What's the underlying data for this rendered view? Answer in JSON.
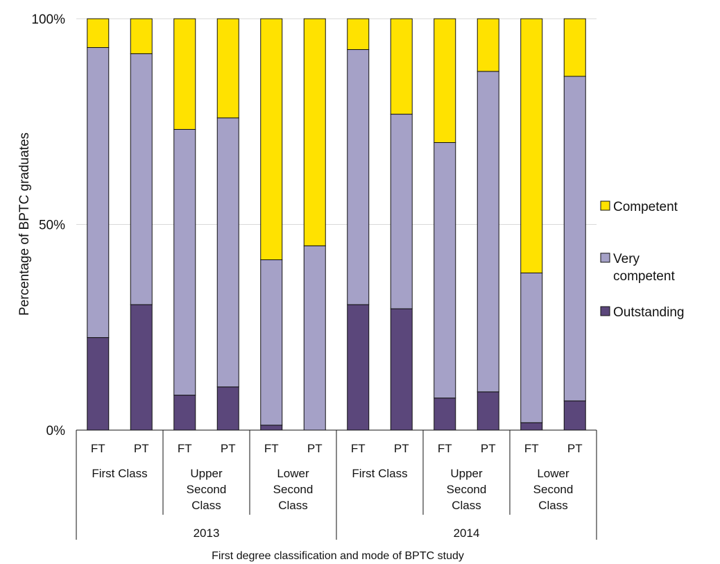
{
  "chart_data": {
    "type": "bar",
    "stacked": true,
    "ylabel": "Percentage of BPTC graduates",
    "xlabel": "First degree classification and mode of BPTC study",
    "ylim": [
      0,
      100
    ],
    "yticks": [
      {
        "value": 0,
        "label": "0%"
      },
      {
        "value": 50,
        "label": "50%"
      },
      {
        "value": 100,
        "label": "100%"
      }
    ],
    "grid": "horizontal",
    "legend_position": "right",
    "categories": [
      "FT",
      "PT",
      "FT",
      "PT",
      "FT",
      "PT",
      "FT",
      "PT",
      "FT",
      "PT",
      "FT",
      "PT"
    ],
    "class_groups": [
      {
        "lines": [
          "First Class"
        ]
      },
      {
        "lines": [
          "Upper",
          "Second",
          "Class"
        ]
      },
      {
        "lines": [
          "Lower",
          "Second",
          "Class"
        ]
      },
      {
        "lines": [
          "First Class"
        ]
      },
      {
        "lines": [
          "Upper",
          "Second",
          "Class"
        ]
      },
      {
        "lines": [
          "Lower",
          "Second",
          "Class"
        ]
      }
    ],
    "year_groups": [
      "2013",
      "2014"
    ],
    "series": [
      {
        "name": "Outstanding",
        "legend_lines": [
          "Outstanding"
        ],
        "color": "#5b477b",
        "values": [
          22.5,
          30.5,
          8.5,
          10.5,
          1.2,
          0,
          30.5,
          29.5,
          7.8,
          9.3,
          1.8,
          7.1
        ]
      },
      {
        "name": "Very competent",
        "legend_lines": [
          "Very",
          "competent"
        ],
        "color": "#a5a1c7",
        "values": [
          70.5,
          61,
          64.6,
          65.4,
          40.2,
          44.8,
          62,
          47.3,
          62.1,
          77.9,
          36.4,
          78.9
        ]
      },
      {
        "name": "Competent",
        "legend_lines": [
          "Competent"
        ],
        "color": "#ffe200",
        "values": [
          7,
          8.5,
          26.9,
          24.1,
          58.6,
          55.2,
          7.5,
          23.2,
          30.1,
          12.8,
          61.8,
          14
        ]
      }
    ]
  }
}
